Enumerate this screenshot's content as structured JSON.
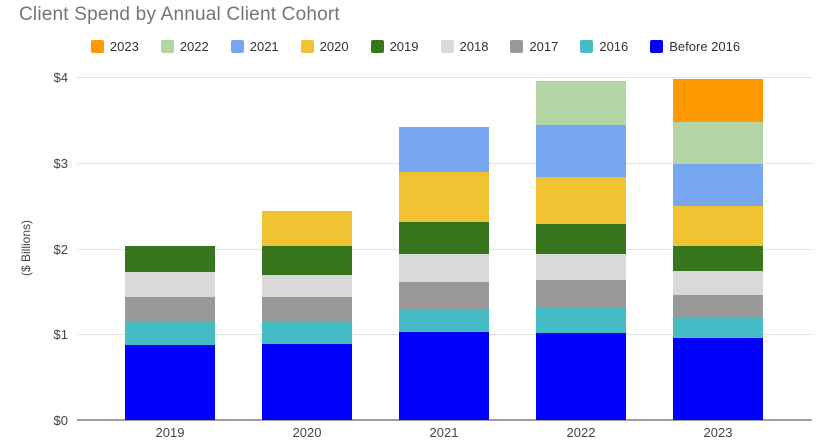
{
  "title": "Client Spend by Annual Client Cohort",
  "chart_data": {
    "type": "bar",
    "stacked": true,
    "title": "Client Spend by Annual Client Cohort",
    "categories": [
      "2019",
      "2020",
      "2021",
      "2022",
      "2023"
    ],
    "series": [
      {
        "name": "Before 2016",
        "color": "#0000FF",
        "values": [
          0.88,
          0.89,
          1.03,
          1.02,
          0.96
        ]
      },
      {
        "name": "2016",
        "color": "#46BDC6",
        "values": [
          0.26,
          0.25,
          0.27,
          0.3,
          0.24
        ]
      },
      {
        "name": "2017",
        "color": "#999999",
        "values": [
          0.3,
          0.29,
          0.31,
          0.31,
          0.26
        ]
      },
      {
        "name": "2018",
        "color": "#D9D9D9",
        "values": [
          0.29,
          0.26,
          0.33,
          0.31,
          0.28
        ]
      },
      {
        "name": "2019",
        "color": "#38761D",
        "values": [
          0.3,
          0.34,
          0.37,
          0.35,
          0.29
        ]
      },
      {
        "name": "2020",
        "color": "#F1C232",
        "values": [
          0.0,
          0.41,
          0.58,
          0.54,
          0.46
        ]
      },
      {
        "name": "2021",
        "color": "#78A7F2",
        "values": [
          0.0,
          0.0,
          0.53,
          0.61,
          0.49
        ]
      },
      {
        "name": "2022",
        "color": "#B3D5A4",
        "values": [
          0.0,
          0.0,
          0.0,
          0.51,
          0.49
        ]
      },
      {
        "name": "2023",
        "color": "#FF9900",
        "values": [
          0.0,
          0.0,
          0.0,
          0.0,
          0.51
        ]
      }
    ],
    "legend_order": [
      "2023",
      "2022",
      "2021",
      "2020",
      "2019",
      "2018",
      "2017",
      "2016",
      "Before 2016"
    ],
    "legend_position": "top",
    "xlabel": "",
    "ylabel": "($ Billions)",
    "ylim": [
      0,
      4
    ],
    "yticks": [
      "$0",
      "$1",
      "$2",
      "$3",
      "$4"
    ],
    "grid": true,
    "bar_totals": [
      2.03,
      2.44,
      3.42,
      3.95,
      3.98
    ]
  }
}
